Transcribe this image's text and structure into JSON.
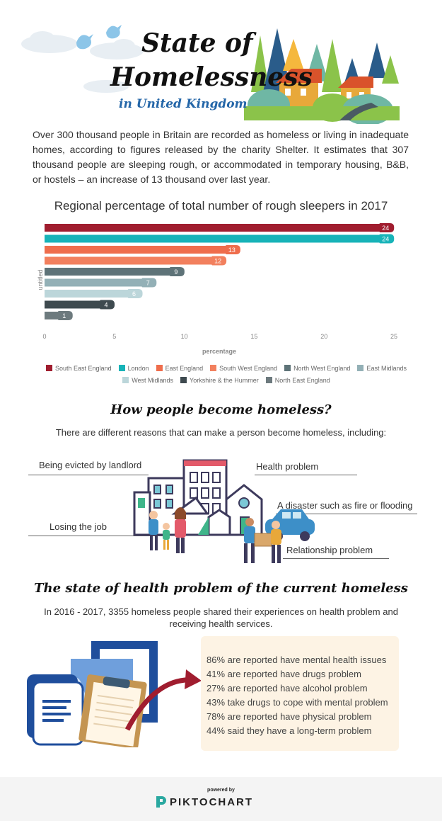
{
  "header": {
    "title_line1": "State of",
    "title_line2": "Homelessness",
    "title_line3": "in United Kingdom"
  },
  "intro": "Over 300 thousand people in Britain are recorded as homeless or living in inadequate homes, according to figures released by the charity Shelter. It estimates that 307 thousand people are sleeping rough, or accommodated in temporary housing, B&B, or hostels – an increase of 13 thousand over last year.",
  "chart_data": {
    "type": "bar",
    "orientation": "horizontal",
    "title": "Regional percentage of total number of rough sleepers in 2017",
    "xlabel": "percentage",
    "ylabel": "untitled",
    "xlim": [
      0,
      25
    ],
    "xticks": [
      "0",
      "5",
      "10",
      "15",
      "20",
      "25"
    ],
    "grid": false,
    "legend_position": "bottom",
    "categories": [
      "South East England",
      "London",
      "East England",
      "South West England",
      "North West England",
      "East Midlands",
      "West Midlands",
      "Yorkshire & the Hummer",
      "North East England"
    ],
    "values": [
      24,
      24,
      13,
      12,
      9,
      7,
      6,
      4,
      1
    ],
    "colors": [
      "#a01d2f",
      "#17b3b8",
      "#ef6d4c",
      "#f2805e",
      "#5e7378",
      "#93b0b6",
      "#bcd6da",
      "#3e4a4f",
      "#6d7a7e"
    ]
  },
  "reasons": {
    "title": "How people become homeless?",
    "subtitle": "There are different reasons that can make a person become homeless, including:",
    "items": [
      "Being evicted by landlord",
      "Health problem",
      "A disaster such as fire or flooding",
      "Losing the job",
      "Relationship problem"
    ]
  },
  "health": {
    "title": "The state of health problem of the current homeless",
    "subtitle": "In 2016 - 2017, 3355 homeless people shared their experiences on health problem and receiving health services.",
    "stats": [
      "86% are reported have mental health issues",
      "41% are reported have drugs problem",
      "27% are reported have alcohol problem",
      "43% take drugs to cope with mental problem",
      "78% are reported have physical problem",
      "44% said they have a long-term problem"
    ]
  },
  "footer": {
    "powered_by": "powered by",
    "brand": "PIKTOCHART"
  }
}
